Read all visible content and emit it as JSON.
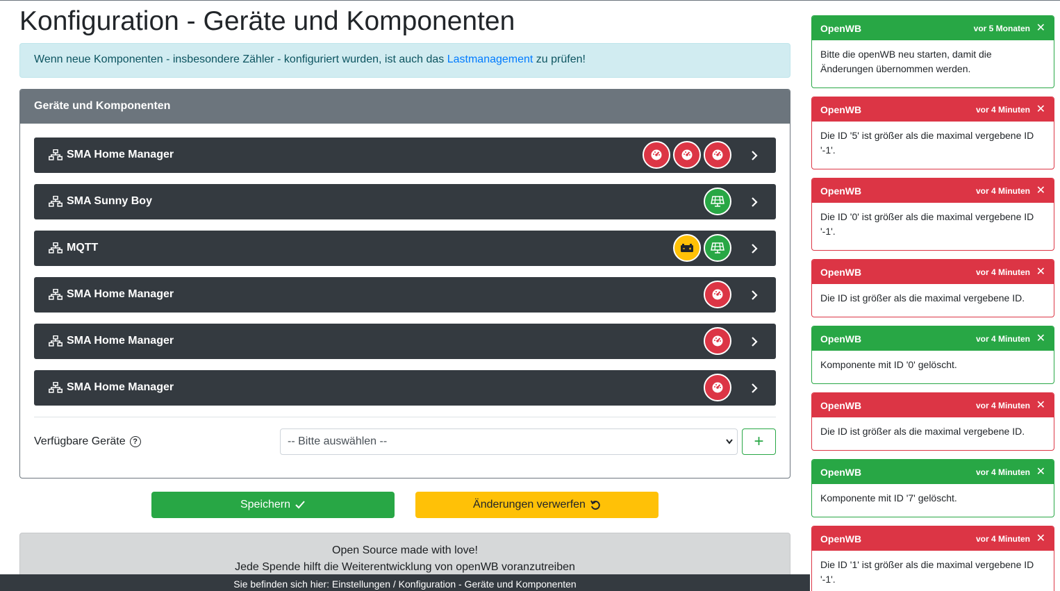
{
  "page": {
    "title": "Konfiguration - Geräte und Komponenten"
  },
  "alert": {
    "text_before": "Wenn neue Komponenten - insbesondere Zähler - konfiguriert wurden, ist auch das ",
    "link": "Lastmanagement",
    "text_after": " zu prüfen!"
  },
  "card": {
    "header": "Geräte und Komponenten",
    "devices": [
      {
        "name": "SMA Home Manager",
        "components": [
          "counter",
          "counter",
          "counter"
        ]
      },
      {
        "name": "SMA Sunny Boy",
        "components": [
          "inverter"
        ]
      },
      {
        "name": "MQTT",
        "components": [
          "battery",
          "inverter"
        ]
      },
      {
        "name": "SMA Home Manager",
        "components": [
          "counter"
        ]
      },
      {
        "name": "SMA Home Manager",
        "components": [
          "counter"
        ]
      },
      {
        "name": "SMA Home Manager",
        "components": [
          "counter"
        ]
      }
    ],
    "available_label": "Verfügbare Geräte",
    "select_placeholder": "-- Bitte auswählen --",
    "add_label": "+"
  },
  "buttons": {
    "save": "Speichern",
    "discard": "Änderungen verwerfen"
  },
  "footer": {
    "line1": "Open Source made with love!",
    "line2": "Jede Spende hilft die Weiterentwicklung von openWB voranzutreiben"
  },
  "breadcrumb": "Sie befinden sich hier: Einstellungen / Konfiguration - Geräte und Komponenten",
  "toasts": [
    {
      "type": "success",
      "title": "OpenWB",
      "time": "vor 5 Monaten",
      "body": "Bitte die openWB neu starten, damit die Änderungen übernommen werden."
    },
    {
      "type": "danger",
      "title": "OpenWB",
      "time": "vor 4 Minuten",
      "body": "Die ID '5' ist größer als die maximal vergebene ID '-1'."
    },
    {
      "type": "danger",
      "title": "OpenWB",
      "time": "vor 4 Minuten",
      "body": "Die ID '0' ist größer als die maximal vergebene ID '-1'."
    },
    {
      "type": "danger",
      "title": "OpenWB",
      "time": "vor 4 Minuten",
      "body": "Die ID ist größer als die maximal vergebene ID."
    },
    {
      "type": "success",
      "title": "OpenWB",
      "time": "vor 4 Minuten",
      "body": "Komponente mit ID '0' gelöscht."
    },
    {
      "type": "danger",
      "title": "OpenWB",
      "time": "vor 4 Minuten",
      "body": "Die ID ist größer als die maximal vergebene ID."
    },
    {
      "type": "success",
      "title": "OpenWB",
      "time": "vor 4 Minuten",
      "body": "Komponente mit ID '7' gelöscht."
    },
    {
      "type": "danger",
      "title": "OpenWB",
      "time": "vor 4 Minuten",
      "body": "Die ID '1' ist größer als die maximal vergebene ID '-1'."
    }
  ],
  "colors": {
    "success": "#28a745",
    "danger": "#dc3545",
    "warning": "#ffc107",
    "dark": "#343a40",
    "secondary": "#6c757d"
  }
}
